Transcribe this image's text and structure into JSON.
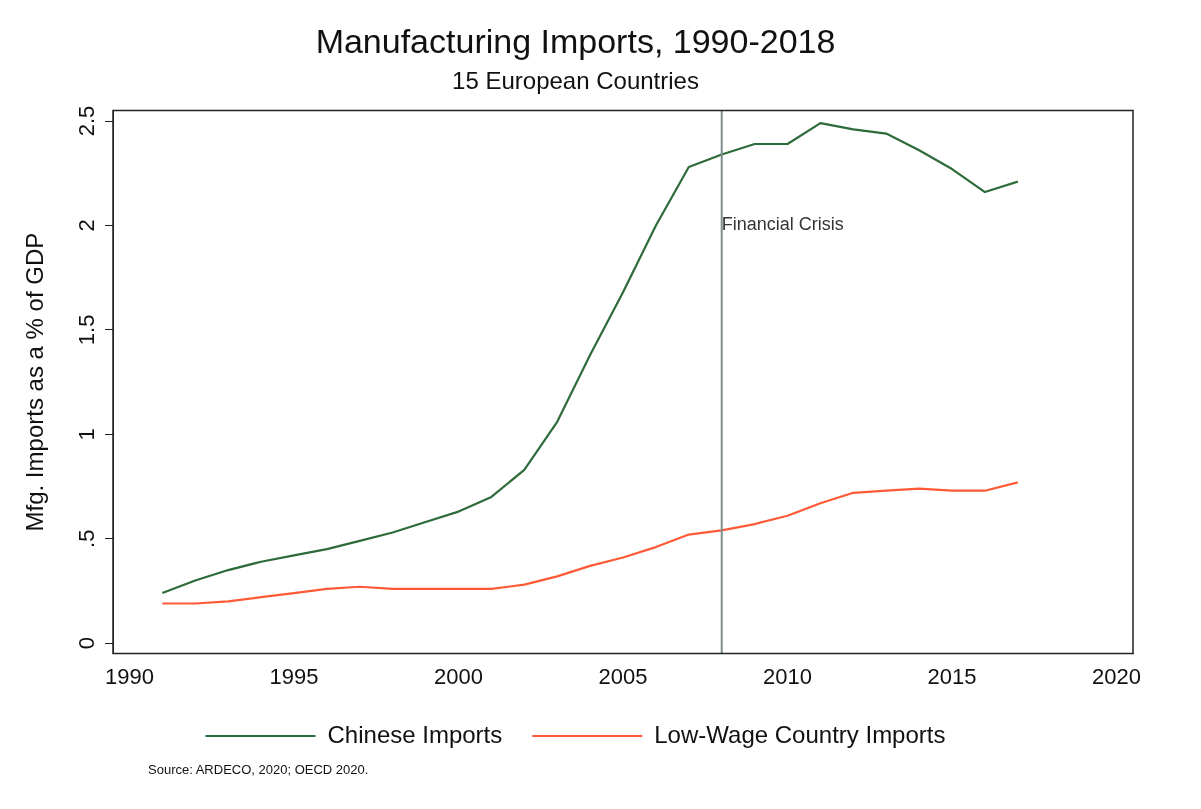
{
  "chart_data": {
    "type": "line",
    "title": "Manufacturing Imports, 1990-2018",
    "subtitle": "15 European Countries",
    "ylabel": "Mfg. Imports as a % of GDP",
    "x": [
      1991,
      1992,
      1993,
      1994,
      1995,
      1996,
      1997,
      1998,
      1999,
      2000,
      2001,
      2002,
      2003,
      2004,
      2005,
      2006,
      2007,
      2008,
      2009,
      2010,
      2011,
      2012,
      2013,
      2014,
      2015,
      2016,
      2017
    ],
    "series": [
      {
        "name": "Chinese Imports",
        "color": "#2e6b3a",
        "values": [
          0.24,
          0.3,
          0.35,
          0.39,
          0.42,
          0.45,
          0.49,
          0.53,
          0.58,
          0.63,
          0.7,
          0.83,
          1.06,
          1.38,
          1.68,
          2.0,
          2.28,
          2.34,
          2.39,
          2.39,
          2.49,
          2.46,
          2.44,
          2.36,
          2.27,
          2.16,
          2.21
        ]
      },
      {
        "name": "Low-Wage Country Imports",
        "color": "#ff5a36",
        "values": [
          0.19,
          0.19,
          0.2,
          0.22,
          0.24,
          0.26,
          0.27,
          0.26,
          0.26,
          0.26,
          0.26,
          0.28,
          0.32,
          0.37,
          0.41,
          0.46,
          0.52,
          0.54,
          0.57,
          0.61,
          0.67,
          0.72,
          0.73,
          0.74,
          0.73,
          0.73,
          0.77
        ]
      }
    ],
    "xlim": [
      1989.5,
      2020.5
    ],
    "xticks": [
      1990,
      1995,
      2000,
      2005,
      2010,
      2015,
      2020
    ],
    "ylim": [
      -0.05,
      2.55
    ],
    "yticks": [
      0,
      {
        "value": 0.5,
        "label": ".5"
      },
      1,
      1.5,
      2,
      2.5
    ],
    "ref_lines": [
      {
        "axis": "x",
        "value": 2008,
        "label": "Financial Crisis",
        "color": "#7f8c8d"
      }
    ],
    "annotations": [
      "Source: ARDECO, 2020; OECD 2020."
    ],
    "legend": "bottom",
    "grid": false,
    "marker": "none",
    "line_style": "solid"
  }
}
